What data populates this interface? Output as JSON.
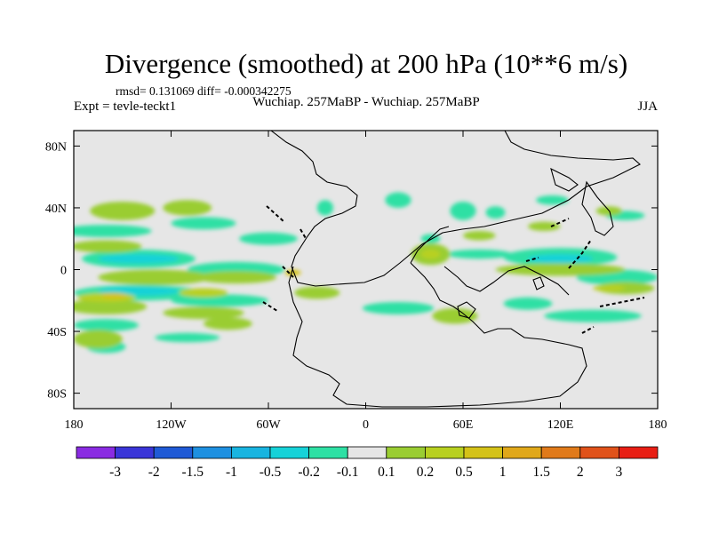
{
  "header": {
    "title": "Divergence (smoothed) at 200 hPa (10**6 m/s)",
    "stats": "rmsd= 0.131069 diff= -0.000342275",
    "experiment": "Expt = tevle-teckt1",
    "comparison": "Wuchiap. 257MaBP - Wuchiap. 257MaBP",
    "season": "JJA"
  },
  "colors": {
    "land_neutral": "#e6e6e6",
    "background": "#ffffff"
  },
  "chart_data": {
    "type": "heatmap",
    "title": "Divergence (smoothed) at 200 hPa (10**6 m/s)",
    "projection": "cylindrical equidistant",
    "xlabel": "",
    "ylabel": "",
    "xlim": [
      -180,
      180
    ],
    "ylim": [
      -90,
      90
    ],
    "x_ticks": [
      {
        "value": -180,
        "label": "180"
      },
      {
        "value": -120,
        "label": "120W"
      },
      {
        "value": -60,
        "label": "60W"
      },
      {
        "value": 0,
        "label": "0"
      },
      {
        "value": 60,
        "label": "60E"
      },
      {
        "value": 120,
        "label": "120E"
      },
      {
        "value": 180,
        "label": "180"
      }
    ],
    "y_ticks": [
      {
        "value": 80,
        "label": "80N"
      },
      {
        "value": 40,
        "label": "40N"
      },
      {
        "value": 0,
        "label": "0"
      },
      {
        "value": -40,
        "label": "40S"
      },
      {
        "value": -80,
        "label": "80S"
      }
    ],
    "colorbar": {
      "colors": [
        "#8a2be2",
        "#3a35d8",
        "#1f5ad6",
        "#1e90e0",
        "#18b4e0",
        "#16d2d8",
        "#2ee0a4",
        "#e6e6e6",
        "#9acd32",
        "#b8d020",
        "#d4c218",
        "#e0a81a",
        "#e07a1a",
        "#e0521a",
        "#e81e14"
      ],
      "labels": [
        "-3",
        "-2",
        "-1.5",
        "-1",
        "-0.5",
        "-0.2",
        "-0.1",
        "0.1",
        "0.2",
        "0.5",
        "1",
        "1.5",
        "2",
        "3"
      ]
    },
    "regions": [
      {
        "level": "-0.1",
        "lon": -160,
        "lat": 25,
        "dlon": 28,
        "dlat": 4
      },
      {
        "level": "-0.1",
        "lon": -100,
        "lat": 30,
        "dlon": 20,
        "dlat": 4
      },
      {
        "level": "-0.1",
        "lon": -60,
        "lat": 20,
        "dlon": 18,
        "dlat": 4
      },
      {
        "level": "-0.1",
        "lon": -140,
        "lat": 7,
        "dlon": 35,
        "dlat": 6
      },
      {
        "level": "-0.1",
        "lon": -80,
        "lat": 0,
        "dlon": 30,
        "dlat": 5
      },
      {
        "level": "-0.1",
        "lon": -140,
        "lat": -15,
        "dlon": 40,
        "dlat": 5
      },
      {
        "level": "-0.1",
        "lon": -90,
        "lat": -20,
        "dlon": 30,
        "dlat": 4
      },
      {
        "level": "-0.1",
        "lon": -160,
        "lat": -36,
        "dlon": 20,
        "dlat": 4
      },
      {
        "level": "-0.1",
        "lon": -110,
        "lat": -44,
        "dlon": 20,
        "dlat": 3
      },
      {
        "level": "-0.1",
        "lon": -160,
        "lat": -50,
        "dlon": 12,
        "dlat": 4
      },
      {
        "level": "-0.1",
        "lon": -25,
        "lat": 40,
        "dlon": 5,
        "dlat": 5
      },
      {
        "level": "-0.1",
        "lon": 20,
        "lat": 45,
        "dlon": 8,
        "dlat": 5
      },
      {
        "level": "-0.1",
        "lon": 60,
        "lat": 38,
        "dlon": 8,
        "dlat": 6
      },
      {
        "level": "-0.1",
        "lon": 80,
        "lat": 37,
        "dlon": 6,
        "dlat": 4
      },
      {
        "level": "-0.1",
        "lon": 115,
        "lat": 45,
        "dlon": 10,
        "dlat": 3
      },
      {
        "level": "-0.1",
        "lon": 160,
        "lat": 35,
        "dlon": 12,
        "dlat": 3
      },
      {
        "level": "-0.1",
        "lon": 40,
        "lat": 20,
        "dlon": 6,
        "dlat": 3
      },
      {
        "level": "-0.1",
        "lon": 70,
        "lat": 10,
        "dlon": 20,
        "dlat": 3
      },
      {
        "level": "-0.1",
        "lon": 120,
        "lat": 8,
        "dlon": 35,
        "dlat": 6
      },
      {
        "level": "-0.1",
        "lon": 155,
        "lat": -5,
        "dlon": 25,
        "dlat": 5
      },
      {
        "level": "-0.1",
        "lon": 20,
        "lat": -25,
        "dlon": 22,
        "dlat": 4
      },
      {
        "level": "-0.1",
        "lon": 140,
        "lat": -30,
        "dlon": 30,
        "dlat": 4
      },
      {
        "level": "-0.1",
        "lon": 100,
        "lat": -22,
        "dlon": 15,
        "dlat": 4
      },
      {
        "level": "-0.2",
        "lon": -140,
        "lat": 7,
        "dlon": 25,
        "dlat": 3
      },
      {
        "level": "-0.2",
        "lon": -140,
        "lat": -14,
        "dlon": 25,
        "dlat": 3
      },
      {
        "level": "-0.2",
        "lon": 120,
        "lat": 7,
        "dlon": 20,
        "dlat": 3
      },
      {
        "level": "0.1",
        "lon": -150,
        "lat": 38,
        "dlon": 20,
        "dlat": 6
      },
      {
        "level": "0.1",
        "lon": -110,
        "lat": 40,
        "dlon": 15,
        "dlat": 5
      },
      {
        "level": "0.1",
        "lon": -160,
        "lat": 15,
        "dlon": 22,
        "dlat": 4
      },
      {
        "level": "0.1",
        "lon": -130,
        "lat": -5,
        "dlon": 35,
        "dlat": 5
      },
      {
        "level": "0.1",
        "lon": -80,
        "lat": -5,
        "dlon": 25,
        "dlat": 4
      },
      {
        "level": "0.1",
        "lon": -160,
        "lat": -24,
        "dlon": 25,
        "dlat": 5
      },
      {
        "level": "0.1",
        "lon": -100,
        "lat": -28,
        "dlon": 25,
        "dlat": 4
      },
      {
        "level": "0.1",
        "lon": -165,
        "lat": -45,
        "dlon": 15,
        "dlat": 6
      },
      {
        "level": "0.1",
        "lon": -30,
        "lat": -15,
        "dlon": 14,
        "dlat": 4
      },
      {
        "level": "0.1",
        "lon": -85,
        "lat": -35,
        "dlon": 15,
        "dlat": 4
      },
      {
        "level": "0.1",
        "lon": 40,
        "lat": 10,
        "dlon": 12,
        "dlat": 7
      },
      {
        "level": "0.1",
        "lon": 55,
        "lat": -30,
        "dlon": 14,
        "dlat": 5
      },
      {
        "level": "0.1",
        "lon": 120,
        "lat": 0,
        "dlon": 40,
        "dlat": 4
      },
      {
        "level": "0.1",
        "lon": 160,
        "lat": -12,
        "dlon": 18,
        "dlat": 4
      },
      {
        "level": "0.1",
        "lon": 70,
        "lat": 22,
        "dlon": 10,
        "dlat": 3
      },
      {
        "level": "0.1",
        "lon": 110,
        "lat": 28,
        "dlon": 10,
        "dlat": 3
      },
      {
        "level": "0.1",
        "lon": 150,
        "lat": 38,
        "dlon": 8,
        "dlat": 3
      },
      {
        "level": "0.2",
        "lon": -160,
        "lat": -18,
        "dlon": 18,
        "dlat": 3
      },
      {
        "level": "0.2",
        "lon": -100,
        "lat": -15,
        "dlon": 15,
        "dlat": 3
      },
      {
        "level": "0.2",
        "lon": 40,
        "lat": 10,
        "dlon": 6,
        "dlat": 3
      },
      {
        "level": "0.2",
        "lon": 150,
        "lat": -12,
        "dlon": 10,
        "dlat": 2
      },
      {
        "level": "0.5",
        "lon": -155,
        "lat": -17,
        "dlon": 8,
        "dlat": 2
      },
      {
        "level": "0.5",
        "lon": -45,
        "lat": -2,
        "dlon": 5,
        "dlat": 2
      }
    ]
  }
}
